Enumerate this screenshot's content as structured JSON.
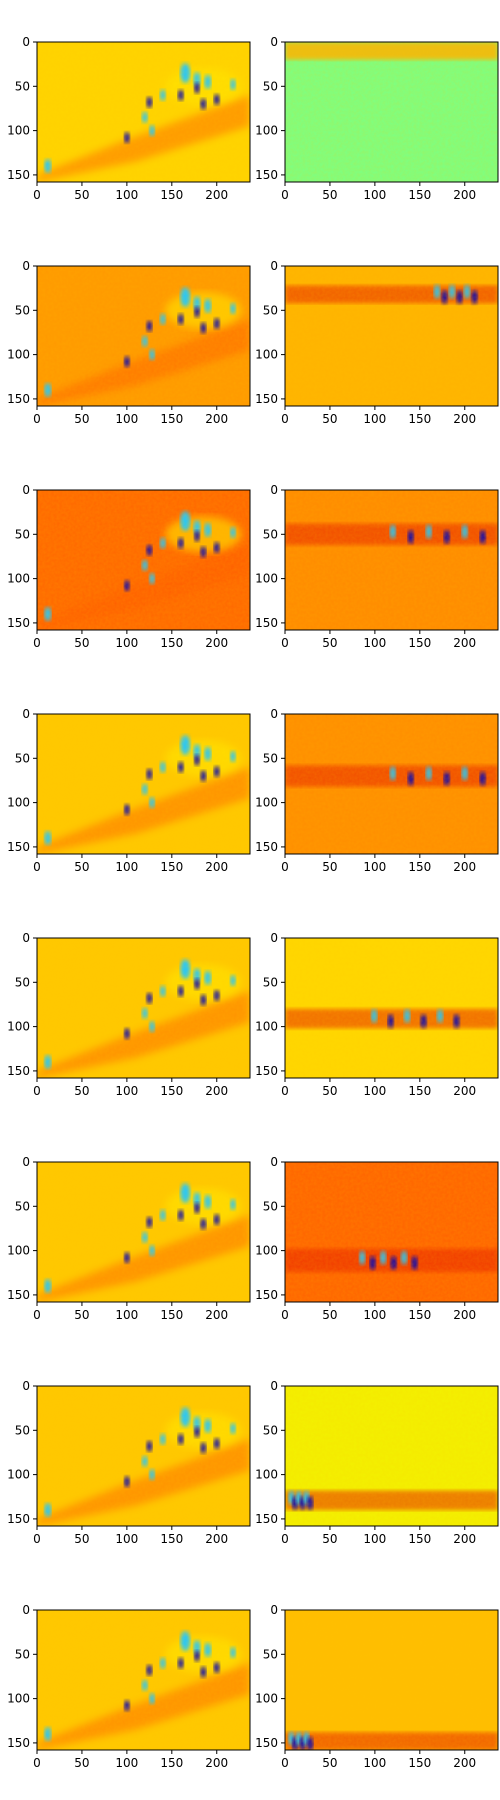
{
  "figure": {
    "grid_rows": 8,
    "grid_cols": 2
  },
  "chart_data": [
    {
      "type": "heatmap",
      "row": 1,
      "col": 1,
      "xlim": [
        0,
        237
      ],
      "ylim": [
        158,
        0
      ],
      "x_ticks": [
        0,
        50,
        100,
        150,
        200
      ],
      "y_ticks": [
        0,
        50,
        100,
        150
      ],
      "colormap": "jet",
      "background": "#ffd400",
      "field": "shared",
      "highlight": "diagonal-band"
    },
    {
      "type": "heatmap",
      "row": 1,
      "col": 2,
      "xlim": [
        0,
        237
      ],
      "ylim": [
        158,
        0
      ],
      "x_ticks": [
        0,
        50,
        100,
        150,
        200
      ],
      "y_ticks": [
        0,
        50,
        100,
        150
      ],
      "colormap": "jet",
      "background": "#7fff7f",
      "band_y": [
        0,
        20
      ],
      "band_color": "#ffb300"
    },
    {
      "type": "heatmap",
      "row": 2,
      "col": 1,
      "xlim": [
        0,
        237
      ],
      "ylim": [
        158,
        0
      ],
      "x_ticks": [
        0,
        50,
        100,
        150,
        200
      ],
      "y_ticks": [
        0,
        50,
        100,
        150
      ],
      "colormap": "jet",
      "background": "#ff9a00",
      "field": "shared"
    },
    {
      "type": "heatmap",
      "row": 2,
      "col": 2,
      "xlim": [
        0,
        237
      ],
      "ylim": [
        158,
        0
      ],
      "x_ticks": [
        0,
        50,
        100,
        150,
        200
      ],
      "y_ticks": [
        0,
        50,
        100,
        150
      ],
      "colormap": "jet",
      "background": "#ffb400",
      "band_y": [
        22,
        42
      ],
      "hot_x": [
        165,
        215
      ]
    },
    {
      "type": "heatmap",
      "row": 3,
      "col": 1,
      "xlim": [
        0,
        237
      ],
      "ylim": [
        158,
        0
      ],
      "x_ticks": [
        0,
        50,
        100,
        150,
        200
      ],
      "y_ticks": [
        0,
        50,
        100,
        150
      ],
      "colormap": "jet",
      "background": "#ff6a00",
      "field": "shared"
    },
    {
      "type": "heatmap",
      "row": 3,
      "col": 2,
      "xlim": [
        0,
        237
      ],
      "ylim": [
        158,
        0
      ],
      "x_ticks": [
        0,
        50,
        100,
        150,
        200
      ],
      "y_ticks": [
        0,
        50,
        100,
        150
      ],
      "colormap": "jet",
      "background": "#ff8c00",
      "band_y": [
        38,
        62
      ],
      "hot_x": [
        110,
        230
      ]
    },
    {
      "type": "heatmap",
      "row": 4,
      "col": 1,
      "xlim": [
        0,
        237
      ],
      "ylim": [
        158,
        0
      ],
      "x_ticks": [
        0,
        50,
        100,
        150,
        200
      ],
      "y_ticks": [
        0,
        50,
        100,
        150
      ],
      "colormap": "jet",
      "background": "#ffc800",
      "field": "shared"
    },
    {
      "type": "heatmap",
      "row": 4,
      "col": 2,
      "xlim": [
        0,
        237
      ],
      "ylim": [
        158,
        0
      ],
      "x_ticks": [
        0,
        50,
        100,
        150,
        200
      ],
      "y_ticks": [
        0,
        50,
        100,
        150
      ],
      "colormap": "jet",
      "background": "#ff8f00",
      "band_y": [
        58,
        82
      ],
      "hot_x": [
        110,
        230
      ]
    },
    {
      "type": "heatmap",
      "row": 5,
      "col": 1,
      "xlim": [
        0,
        237
      ],
      "ylim": [
        158,
        0
      ],
      "x_ticks": [
        0,
        50,
        100,
        150,
        200
      ],
      "y_ticks": [
        0,
        50,
        100,
        150
      ],
      "colormap": "jet",
      "background": "#ffc800",
      "field": "shared"
    },
    {
      "type": "heatmap",
      "row": 5,
      "col": 2,
      "xlim": [
        0,
        237
      ],
      "ylim": [
        158,
        0
      ],
      "x_ticks": [
        0,
        50,
        100,
        150,
        200
      ],
      "y_ticks": [
        0,
        50,
        100,
        150
      ],
      "colormap": "jet",
      "background": "#ffd700",
      "band_y": [
        80,
        102
      ],
      "hot_x": [
        90,
        200
      ]
    },
    {
      "type": "heatmap",
      "row": 6,
      "col": 1,
      "xlim": [
        0,
        237
      ],
      "ylim": [
        158,
        0
      ],
      "x_ticks": [
        0,
        50,
        100,
        150,
        200
      ],
      "y_ticks": [
        0,
        50,
        100,
        150
      ],
      "colormap": "jet",
      "background": "#ffc800",
      "field": "shared"
    },
    {
      "type": "heatmap",
      "row": 6,
      "col": 2,
      "xlim": [
        0,
        237
      ],
      "ylim": [
        158,
        0
      ],
      "x_ticks": [
        0,
        50,
        100,
        150,
        200
      ],
      "y_ticks": [
        0,
        50,
        100,
        150
      ],
      "colormap": "jet",
      "background": "#ff6600",
      "band_y": [
        98,
        124
      ],
      "hot_x": [
        80,
        150
      ]
    },
    {
      "type": "heatmap",
      "row": 7,
      "col": 1,
      "xlim": [
        0,
        237
      ],
      "ylim": [
        158,
        0
      ],
      "x_ticks": [
        0,
        50,
        100,
        150,
        200
      ],
      "y_ticks": [
        0,
        50,
        100,
        150
      ],
      "colormap": "jet",
      "background": "#ffc800",
      "field": "shared"
    },
    {
      "type": "heatmap",
      "row": 7,
      "col": 2,
      "xlim": [
        0,
        237
      ],
      "ylim": [
        158,
        0
      ],
      "x_ticks": [
        0,
        50,
        100,
        150,
        200
      ],
      "y_ticks": [
        0,
        50,
        100,
        150
      ],
      "colormap": "jet",
      "background": "#f3f000",
      "band_y": [
        118,
        140
      ],
      "hot_x": [
        5,
        30
      ]
    },
    {
      "type": "heatmap",
      "row": 8,
      "col": 1,
      "xlim": [
        0,
        237
      ],
      "ylim": [
        158,
        0
      ],
      "x_ticks": [
        0,
        50,
        100,
        150,
        200
      ],
      "y_ticks": [
        0,
        50,
        100,
        150
      ],
      "colormap": "jet",
      "background": "#ffc800",
      "field": "shared"
    },
    {
      "type": "heatmap",
      "row": 8,
      "col": 2,
      "xlim": [
        0,
        237
      ],
      "ylim": [
        158,
        0
      ],
      "x_ticks": [
        0,
        50,
        100,
        150,
        200
      ],
      "y_ticks": [
        0,
        50,
        100,
        150
      ],
      "colormap": "jet",
      "background": "#ffbe00",
      "band_y": [
        138,
        158
      ],
      "hot_x": [
        5,
        30
      ]
    }
  ]
}
